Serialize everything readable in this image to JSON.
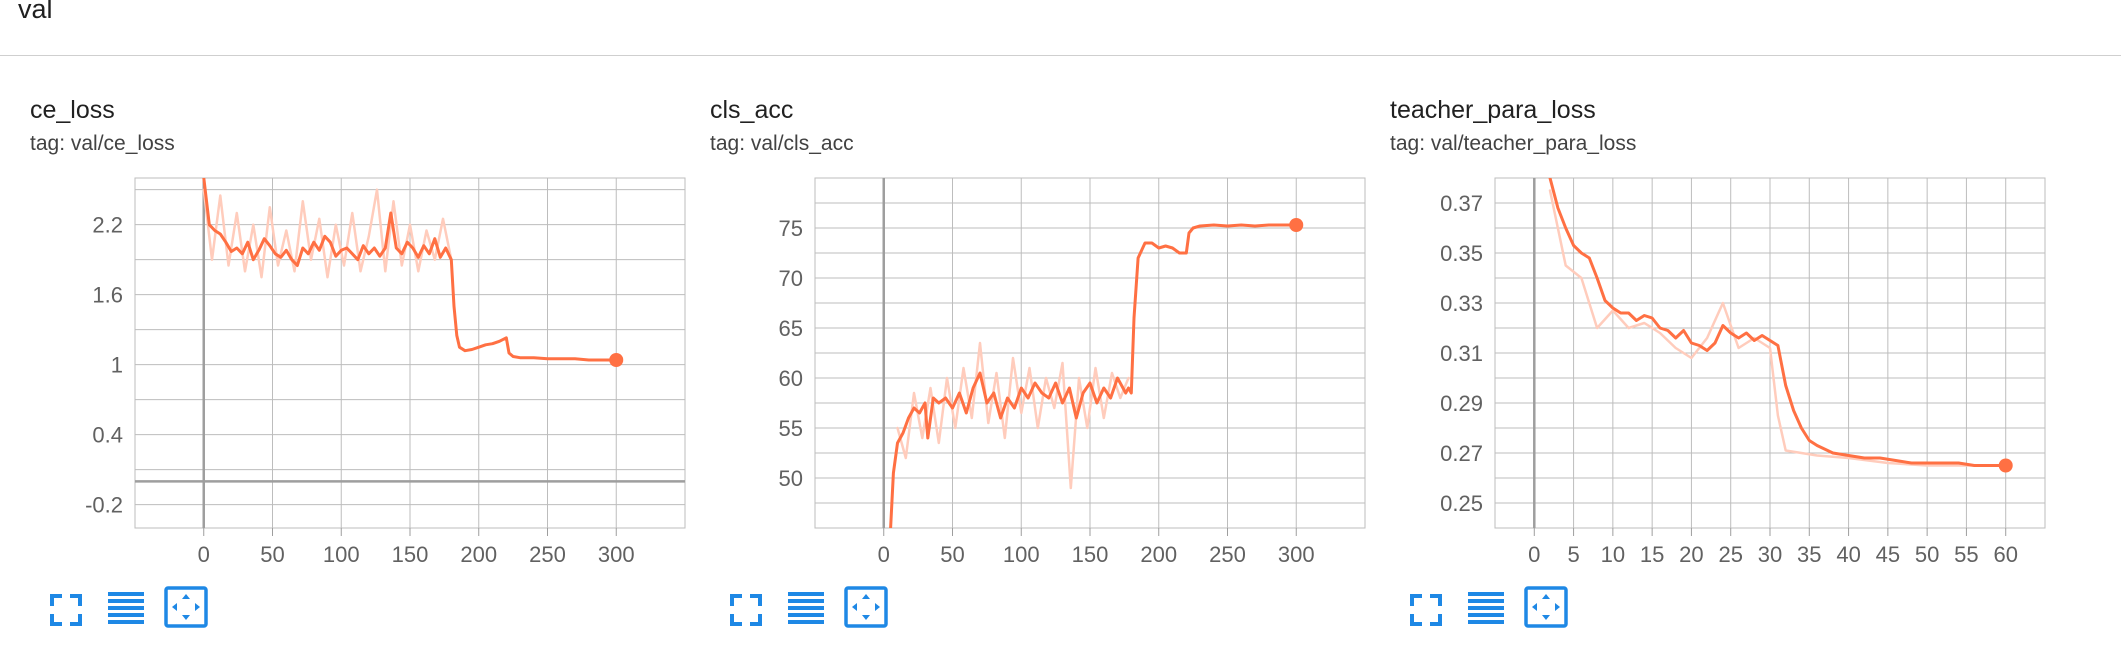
{
  "section": {
    "title": "val"
  },
  "colors": {
    "line": "#ff7043",
    "raw_line": "#ffccbc",
    "grid": "#bdbdbd",
    "axis": "#9e9e9e",
    "toolbar_icon": "#1e88e5"
  },
  "toolbar_icons": [
    "fullscreen-icon",
    "list-icon",
    "fit-domain-icon"
  ],
  "chart_data": [
    {
      "type": "line",
      "title": "ce_loss",
      "subtitle": "tag: val/ce_loss",
      "xlabel": "",
      "ylabel": "",
      "xlim": [
        -50,
        350
      ],
      "ylim": [
        -0.4,
        2.6
      ],
      "xticks": [
        0,
        50,
        100,
        150,
        200,
        250,
        300
      ],
      "yticks": [
        -0.2,
        0.4,
        1,
        1.6,
        2.2
      ],
      "grid": true,
      "series": [
        {
          "smoothed": true,
          "x": [
            0,
            4,
            8,
            12,
            16,
            20,
            24,
            28,
            32,
            36,
            40,
            44,
            48,
            52,
            56,
            60,
            64,
            68,
            72,
            76,
            80,
            84,
            88,
            92,
            96,
            100,
            104,
            108,
            112,
            116,
            120,
            124,
            128,
            132,
            136,
            140,
            144,
            148,
            152,
            156,
            160,
            164,
            168,
            172,
            176,
            180,
            182,
            184,
            186,
            190,
            195,
            200,
            205,
            210,
            215,
            220,
            222,
            225,
            230,
            240,
            250,
            260,
            270,
            280,
            290,
            300
          ],
          "y": [
            2.6,
            2.2,
            2.15,
            2.12,
            2.05,
            1.97,
            2.0,
            1.95,
            2.05,
            1.9,
            1.98,
            2.08,
            2.02,
            1.95,
            1.92,
            1.98,
            1.9,
            1.85,
            2.0,
            1.95,
            2.05,
            1.98,
            2.1,
            2.05,
            1.93,
            1.98,
            2.0,
            1.95,
            1.9,
            2.02,
            1.95,
            2.0,
            1.93,
            2.0,
            2.3,
            2.0,
            1.95,
            2.05,
            2.0,
            1.92,
            2.02,
            1.95,
            2.08,
            1.92,
            2.0,
            1.9,
            1.5,
            1.25,
            1.15,
            1.12,
            1.13,
            1.15,
            1.17,
            1.18,
            1.2,
            1.23,
            1.1,
            1.07,
            1.06,
            1.06,
            1.05,
            1.05,
            1.05,
            1.04,
            1.04,
            1.04
          ]
        },
        {
          "smoothed": false,
          "x": [
            0,
            6,
            12,
            18,
            24,
            30,
            36,
            42,
            48,
            54,
            60,
            66,
            72,
            78,
            84,
            90,
            96,
            102,
            108,
            114,
            120,
            126,
            132,
            138,
            144,
            150,
            156,
            162,
            168,
            174,
            180
          ],
          "y": [
            2.5,
            1.9,
            2.45,
            1.85,
            2.3,
            1.8,
            2.2,
            1.75,
            2.35,
            1.85,
            2.15,
            1.8,
            2.4,
            1.9,
            2.25,
            1.75,
            2.2,
            1.85,
            2.3,
            1.8,
            2.1,
            2.5,
            1.8,
            2.4,
            1.85,
            2.2,
            1.8,
            2.15,
            1.9,
            2.25,
            1.9
          ]
        }
      ]
    },
    {
      "type": "line",
      "title": "cls_acc",
      "subtitle": "tag: val/cls_acc",
      "xlabel": "",
      "ylabel": "",
      "xlim": [
        -50,
        350
      ],
      "ylim": [
        45,
        80
      ],
      "xticks": [
        0,
        50,
        100,
        150,
        200,
        250,
        300
      ],
      "yticks": [
        50,
        55,
        60,
        65,
        70,
        75
      ],
      "grid": true,
      "series": [
        {
          "smoothed": true,
          "x": [
            5,
            7,
            10,
            14,
            18,
            22,
            26,
            30,
            32,
            36,
            40,
            45,
            50,
            55,
            60,
            65,
            70,
            75,
            80,
            85,
            90,
            95,
            100,
            105,
            110,
            115,
            120,
            125,
            130,
            135,
            140,
            145,
            150,
            155,
            160,
            165,
            170,
            176,
            178,
            180,
            182,
            185,
            190,
            195,
            200,
            205,
            210,
            215,
            220,
            222,
            225,
            230,
            240,
            250,
            260,
            270,
            280,
            290,
            300
          ],
          "y": [
            45,
            50.5,
            53.5,
            54.5,
            56,
            57,
            56.5,
            57.5,
            54,
            58,
            57.5,
            58,
            57,
            58.5,
            56.5,
            59,
            60.5,
            57.5,
            58.5,
            56,
            58,
            57,
            59,
            58,
            59.5,
            58.5,
            58,
            59.5,
            57.5,
            59,
            56,
            58.5,
            59.5,
            57.5,
            59,
            58,
            60,
            58.5,
            59,
            58.5,
            66,
            72,
            73.5,
            73.5,
            73,
            73.2,
            73,
            72.5,
            72.5,
            74.5,
            75,
            75.2,
            75.3,
            75.2,
            75.3,
            75.2,
            75.3,
            75.3,
            75.3
          ]
        },
        {
          "smoothed": false,
          "x": [
            10,
            16,
            22,
            28,
            34,
            40,
            46,
            52,
            58,
            64,
            70,
            76,
            82,
            88,
            94,
            100,
            106,
            112,
            118,
            124,
            130,
            136,
            142,
            148,
            154,
            160,
            166,
            172,
            178
          ],
          "y": [
            55,
            52,
            58.5,
            54,
            59,
            53.5,
            60,
            55,
            61,
            56,
            63.5,
            55.5,
            60.5,
            54,
            62,
            56.5,
            61,
            55,
            60,
            57,
            61.5,
            49,
            60,
            55,
            61,
            56,
            60.5,
            58,
            60
          ]
        }
      ]
    },
    {
      "type": "line",
      "title": "teacher_para_loss",
      "subtitle": "tag: val/teacher_para_loss",
      "xlabel": "",
      "ylabel": "",
      "xlim": [
        -5,
        65
      ],
      "ylim": [
        0.24,
        0.38
      ],
      "xticks": [
        0,
        5,
        10,
        15,
        20,
        25,
        30,
        35,
        40,
        45,
        50,
        55,
        60
      ],
      "yticks": [
        0.25,
        0.27,
        0.29,
        0.31,
        0.33,
        0.35,
        0.37
      ],
      "grid": true,
      "series": [
        {
          "smoothed": true,
          "x": [
            2,
            3,
            4,
            5,
            6,
            7,
            8,
            9,
            10,
            11,
            12,
            13,
            14,
            15,
            16,
            17,
            18,
            19,
            20,
            21,
            22,
            23,
            24,
            25,
            26,
            27,
            28,
            29,
            30,
            31,
            32,
            33,
            34,
            35,
            36,
            38,
            40,
            42,
            44,
            46,
            48,
            50,
            52,
            54,
            56,
            58,
            60
          ],
          "y": [
            0.38,
            0.368,
            0.36,
            0.353,
            0.35,
            0.348,
            0.34,
            0.331,
            0.328,
            0.326,
            0.326,
            0.323,
            0.325,
            0.324,
            0.32,
            0.319,
            0.316,
            0.319,
            0.314,
            0.313,
            0.311,
            0.314,
            0.321,
            0.318,
            0.316,
            0.318,
            0.315,
            0.317,
            0.315,
            0.313,
            0.297,
            0.287,
            0.28,
            0.275,
            0.273,
            0.27,
            0.269,
            0.268,
            0.268,
            0.267,
            0.266,
            0.266,
            0.266,
            0.266,
            0.265,
            0.265,
            0.265
          ]
        },
        {
          "smoothed": false,
          "x": [
            2,
            4,
            6,
            8,
            10,
            12,
            14,
            16,
            18,
            20,
            22,
            24,
            26,
            28,
            30,
            31,
            32,
            34,
            36,
            40,
            45,
            50,
            55,
            60
          ],
          "y": [
            0.375,
            0.345,
            0.34,
            0.32,
            0.327,
            0.32,
            0.322,
            0.318,
            0.312,
            0.308,
            0.316,
            0.33,
            0.312,
            0.316,
            0.312,
            0.285,
            0.271,
            0.27,
            0.269,
            0.268,
            0.266,
            0.265,
            0.265,
            0.265
          ]
        }
      ]
    }
  ]
}
